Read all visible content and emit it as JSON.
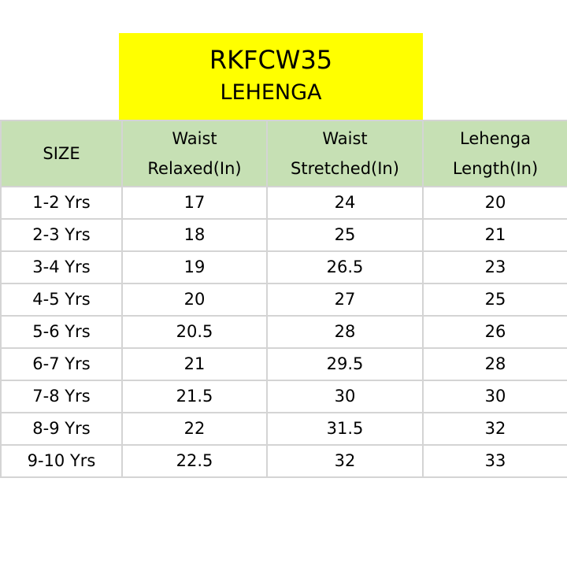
{
  "title": {
    "code": "RKFCW35",
    "product": "LEHENGA"
  },
  "table": {
    "headers": [
      {
        "line1": "SIZE",
        "line2": ""
      },
      {
        "line1": "Waist",
        "line2": "Relaxed(In)"
      },
      {
        "line1": "Waist",
        "line2": "Stretched(In)"
      },
      {
        "line1": "Lehenga",
        "line2": "Length(In)"
      }
    ],
    "rows": [
      [
        "1-2 Yrs",
        "17",
        "24",
        "20"
      ],
      [
        "2-3 Yrs",
        "18",
        "25",
        "21"
      ],
      [
        "3-4 Yrs",
        "19",
        "26.5",
        "23"
      ],
      [
        "4-5 Yrs",
        "20",
        "27",
        "25"
      ],
      [
        "5-6 Yrs",
        "20.5",
        "28",
        "26"
      ],
      [
        "6-7 Yrs",
        "21",
        "29.5",
        "28"
      ],
      [
        "7-8 Yrs",
        "21.5",
        "30",
        "30"
      ],
      [
        "8-9 Yrs",
        "22",
        "31.5",
        "32"
      ],
      [
        "9-10 Yrs",
        "22.5",
        "32",
        "33"
      ]
    ]
  },
  "colors": {
    "title_background": "#ffff00",
    "header_background": "#c6e0b4",
    "grid_lines": "#d4d4d4"
  }
}
